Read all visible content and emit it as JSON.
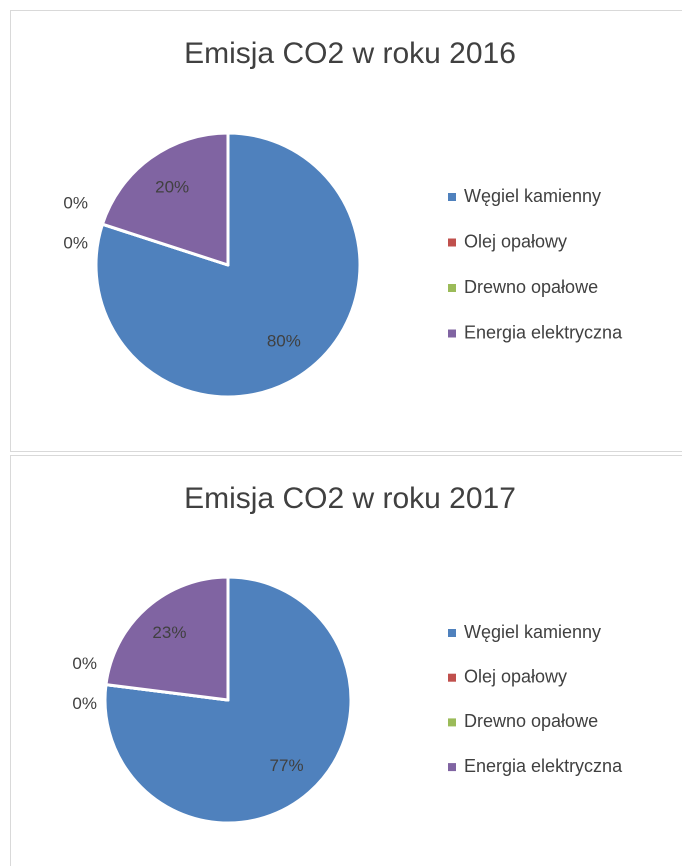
{
  "chart_data": [
    {
      "type": "pie",
      "title": "Emisja CO2 w roku 2016",
      "categories": [
        "Węgiel kamienny",
        "Olej opałowy",
        "Drewno opałowe",
        "Energia elektryczna"
      ],
      "values": [
        80,
        0,
        0,
        20
      ],
      "value_labels": [
        "80%",
        "0%",
        "0%",
        "20%"
      ],
      "colors": [
        "#4f81bd",
        "#c0504d",
        "#9bbb59",
        "#8064a2"
      ],
      "legend": "right"
    },
    {
      "type": "pie",
      "title": "Emisja CO2 w roku 2017",
      "categories": [
        "Węgiel kamienny",
        "Olej opałowy",
        "Drewno opałowe",
        "Energia elektryczna"
      ],
      "values": [
        77,
        0,
        0,
        23
      ],
      "value_labels": [
        "77%",
        "0%",
        "0%",
        "23%"
      ],
      "colors": [
        "#4f81bd",
        "#c0504d",
        "#9bbb59",
        "#8064a2"
      ],
      "legend": "right"
    }
  ]
}
